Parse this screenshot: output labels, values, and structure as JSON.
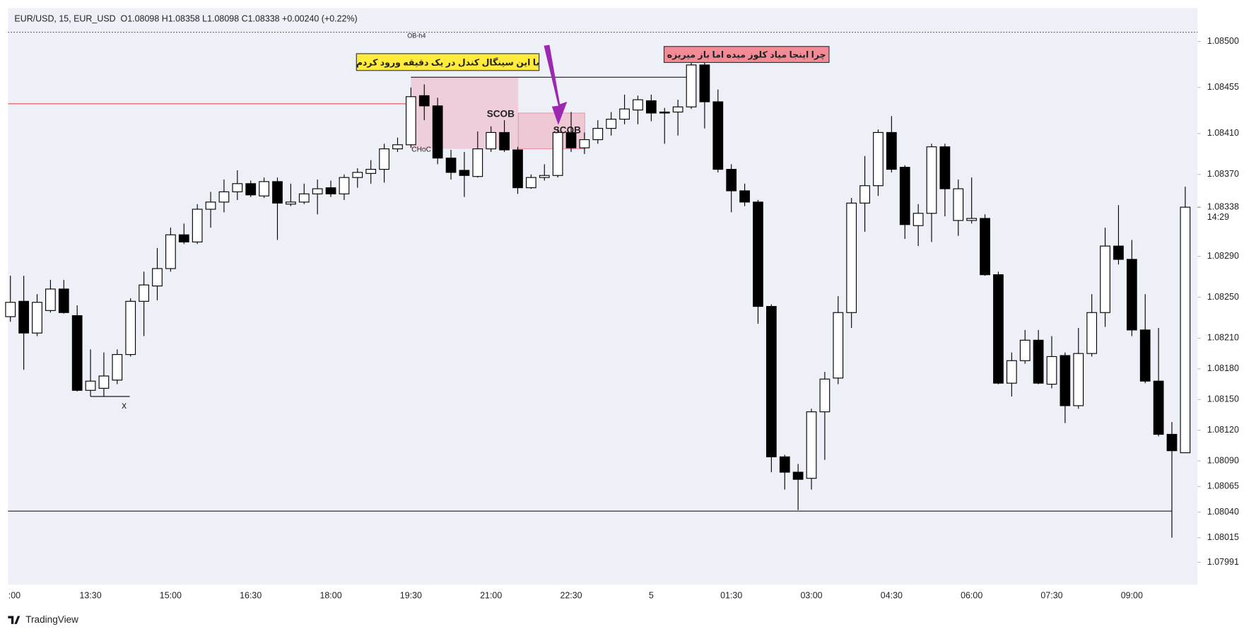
{
  "chart_data": {
    "type": "candlestick",
    "title": "EUR/USD, 15, EUR_USD  O1.08098 H1.08358 L1.08098 C1.08338 +0.00240 (+0.22%)",
    "categories": [
      ":00",
      null,
      null,
      null,
      null,
      null,
      "13:30",
      null,
      null,
      null,
      null,
      null,
      "15:00",
      null,
      null,
      null,
      null,
      null,
      "16:30",
      null,
      null,
      null,
      null,
      null,
      "18:00",
      null,
      null,
      null,
      null,
      null,
      "19:30",
      null,
      null,
      null,
      null,
      null,
      "21:00",
      null,
      null,
      null,
      null,
      null,
      "22:30",
      null,
      null,
      null,
      null,
      null,
      "5",
      null,
      null,
      null,
      null,
      null,
      "01:30",
      null,
      null,
      null,
      null,
      null,
      "03:00",
      null,
      null,
      null,
      null,
      null,
      "04:30",
      null,
      null,
      null,
      null,
      null,
      "06:00",
      null,
      null,
      null,
      null,
      null,
      "07:30",
      null,
      null,
      null,
      null,
      null,
      "09:00",
      null,
      null,
      null,
      null
    ],
    "open": [
      1.08231,
      1.08246,
      1.08215,
      1.08237,
      1.08258,
      1.08232,
      1.08159,
      1.08161,
      1.08169,
      1.08194,
      1.08246,
      1.08261,
      1.08278,
      1.08311,
      1.08304,
      1.08336,
      1.08343,
      1.08353,
      1.08361,
      1.08349,
      1.08363,
      1.08341,
      1.08343,
      1.08351,
      1.08357,
      1.08351,
      1.08367,
      1.08371,
      1.08375,
      1.08395,
      1.08399,
      1.08447,
      1.08437,
      1.08386,
      1.08374,
      1.08368,
      1.08395,
      1.08411,
      1.08394,
      1.08357,
      1.08367,
      1.08369,
      1.08411,
      1.08396,
      1.08404,
      1.08415,
      1.08424,
      1.08433,
      1.08442,
      1.08431,
      1.08431,
      1.08436,
      1.08477,
      1.08441,
      1.08375,
      1.08354,
      1.08343,
      1.08241,
      1.08094,
      1.08079,
      1.08073,
      1.08138,
      1.08171,
      1.08235,
      1.08342,
      1.08359,
      1.08411,
      1.08377,
      1.0832,
      1.08332,
      1.08397,
      1.08325,
      1.08325,
      1.08327,
      1.08272,
      1.08166,
      1.08188,
      1.08208,
      1.08165,
      1.08193,
      1.08144,
      1.08195,
      1.08235,
      1.083,
      1.08287,
      1.08218,
      1.08168,
      1.08116,
      1.08098
    ],
    "high": [
      1.08271,
      1.08271,
      1.08253,
      1.08267,
      1.08267,
      1.08242,
      1.08199,
      1.08196,
      1.08199,
      1.08249,
      1.08275,
      1.08298,
      1.08318,
      1.08322,
      1.08341,
      1.08353,
      1.08365,
      1.08374,
      1.08364,
      1.08367,
      1.08367,
      1.08361,
      1.08361,
      1.08365,
      1.08364,
      1.0837,
      1.08376,
      1.08384,
      1.084,
      1.08406,
      1.08455,
      1.08458,
      1.08445,
      1.08394,
      1.08392,
      1.08412,
      1.08417,
      1.08423,
      1.08397,
      1.0837,
      1.0838,
      1.08415,
      1.08431,
      1.08411,
      1.08423,
      1.08431,
      1.08448,
      1.08447,
      1.08448,
      1.08435,
      1.08443,
      1.0848,
      1.0848,
      1.08453,
      1.0838,
      1.08361,
      1.08345,
      1.08243,
      1.08096,
      1.08087,
      1.08141,
      1.08177,
      1.08251,
      1.08347,
      1.08388,
      1.08414,
      1.08427,
      1.08379,
      1.08341,
      1.084,
      1.084,
      1.08365,
      1.08367,
      1.08331,
      1.08275,
      1.08196,
      1.08218,
      1.08218,
      1.08212,
      1.08196,
      1.0822,
      1.08253,
      1.08318,
      1.0834,
      1.08306,
      1.08253,
      1.0822,
      1.08128,
      1.08358
    ],
    "low": [
      1.08226,
      1.08179,
      1.08212,
      1.08235,
      1.08234,
      1.08158,
      1.08153,
      1.08153,
      1.08165,
      1.08192,
      1.08212,
      1.08247,
      1.08275,
      1.08302,
      1.08302,
      1.08318,
      1.08333,
      1.08345,
      1.08348,
      1.08347,
      1.08306,
      1.08339,
      1.08341,
      1.08331,
      1.08348,
      1.08345,
      1.08357,
      1.08361,
      1.08362,
      1.08392,
      1.08396,
      1.08423,
      1.0838,
      1.08365,
      1.08348,
      1.08367,
      1.08392,
      1.08392,
      1.08351,
      1.08356,
      1.08364,
      1.08367,
      1.08392,
      1.0839,
      1.084,
      1.08408,
      1.08419,
      1.08419,
      1.08422,
      1.084,
      1.08408,
      1.08434,
      1.08415,
      1.08372,
      1.08333,
      1.08339,
      1.08224,
      1.08079,
      1.08062,
      1.08042,
      1.08062,
      1.08091,
      1.08165,
      1.0822,
      1.08314,
      1.08349,
      1.08372,
      1.08307,
      1.083,
      1.08304,
      1.08329,
      1.0831,
      1.08322,
      1.08271,
      1.08165,
      1.08153,
      1.08185,
      1.08165,
      1.08161,
      1.08127,
      1.08141,
      1.08192,
      1.08221,
      1.08282,
      1.08212,
      1.08166,
      1.08114,
      1.08015,
      1.08098
    ],
    "close": [
      1.08245,
      1.08215,
      1.08245,
      1.08258,
      1.08235,
      1.08159,
      1.08168,
      1.08173,
      1.08194,
      1.08246,
      1.08262,
      1.08278,
      1.08311,
      1.08304,
      1.08336,
      1.08343,
      1.08353,
      1.08361,
      1.0835,
      1.08363,
      1.08342,
      1.08343,
      1.08351,
      1.08356,
      1.08351,
      1.08367,
      1.08372,
      1.08375,
      1.08395,
      1.08399,
      1.08446,
      1.08437,
      1.08386,
      1.08372,
      1.08369,
      1.08395,
      1.08411,
      1.08394,
      1.08357,
      1.08367,
      1.08369,
      1.08411,
      1.08396,
      1.08404,
      1.08415,
      1.08424,
      1.08434,
      1.08443,
      1.0843,
      1.0843,
      1.08436,
      1.08477,
      1.08441,
      1.08375,
      1.08354,
      1.08343,
      1.08241,
      1.08094,
      1.08079,
      1.08072,
      1.08138,
      1.0817,
      1.08235,
      1.08342,
      1.08359,
      1.08411,
      1.08375,
      1.08321,
      1.08332,
      1.08397,
      1.08356,
      1.08356,
      1.08327,
      1.08272,
      1.08166,
      1.08188,
      1.08208,
      1.08166,
      1.08192,
      1.08144,
      1.08195,
      1.08235,
      1.083,
      1.08287,
      1.08218,
      1.08168,
      1.08116,
      1.081,
      1.08338
    ],
    "up_color": "#ffffff",
    "down_color": "#000000",
    "ylim": [
      1.07969,
      1.08517
    ],
    "yticks": [
      {
        "value": 1.085,
        "label": "1.08500"
      },
      1.08455,
      {
        "value": 1.0841,
        "label": "1.08410"
      },
      {
        "value": 1.0837,
        "label": "1.08370"
      },
      {
        "value": 1.0829,
        "label": "1.08290"
      },
      {
        "value": 1.0825,
        "label": "1.08250"
      },
      {
        "value": 1.0821,
        "label": "1.08210"
      },
      {
        "value": 1.0818,
        "label": "1.08180"
      },
      {
        "value": 1.0815,
        "label": "1.08150"
      },
      {
        "value": 1.0812,
        "label": "1.08120"
      },
      {
        "value": 1.0809,
        "label": "1.08090"
      },
      1.08065,
      {
        "value": 1.0804,
        "label": "1.08040"
      },
      1.08015,
      1.07991
    ],
    "last_price": {
      "value": 1.08338,
      "label": "1.08338"
    },
    "countdown": "14:29",
    "levels": [
      {
        "label": "OB-h4",
        "value": 1.08509,
        "color": "#555555"
      },
      {
        "value": 1.08465,
        "color": "#000000"
      },
      {
        "value": 1.08439,
        "color": "#e53935"
      },
      {
        "value": 1.08041,
        "color": "#000000"
      },
      {
        "label": "x",
        "value": 1.08153,
        "color": "#000000"
      }
    ],
    "zones": [
      {
        "top": 1.08465,
        "bottom": 1.08395,
        "color": "#f0b3c3"
      },
      {
        "top": 1.0843,
        "bottom": 1.08395,
        "color": "#f0a8b8"
      }
    ],
    "labels": [
      "SCOB",
      "SCOB",
      "CHoC"
    ],
    "notes": [
      {
        "text": "با این سینگال کندل در یک دقیقه ورود کردم",
        "color": "#ffeb3b"
      },
      {
        "text": "چرا اینجا میاد کلوز میده اما باز میریزه",
        "color": "#f28b96"
      }
    ],
    "brand": "TradingView"
  }
}
